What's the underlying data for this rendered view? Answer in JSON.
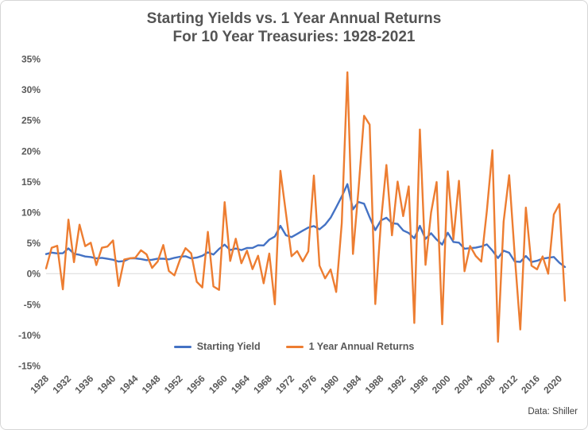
{
  "title": {
    "line1": "Starting Yields vs. 1 Year Annual Returns",
    "line2": "For 10 Year Treasuries: 1928-2021"
  },
  "source": "Data: Shiller",
  "legend": {
    "items": [
      {
        "label": "Starting Yield",
        "color": "#4472C4"
      },
      {
        "label": "1 Year Annual Returns",
        "color": "#ED7D31"
      }
    ]
  },
  "chart_data": {
    "type": "line",
    "title": "Starting Yields vs. 1 Year Annual Returns For 10 Year Treasuries: 1928-2021",
    "xlabel": "",
    "ylabel": "",
    "ylim": [
      -15,
      35
    ],
    "grid": "zero-line-only",
    "legend_position": "bottom-center",
    "x": [
      1928,
      1929,
      1930,
      1931,
      1932,
      1933,
      1934,
      1935,
      1936,
      1937,
      1938,
      1939,
      1940,
      1941,
      1942,
      1943,
      1944,
      1945,
      1946,
      1947,
      1948,
      1949,
      1950,
      1951,
      1952,
      1953,
      1954,
      1955,
      1956,
      1957,
      1958,
      1959,
      1960,
      1961,
      1962,
      1963,
      1964,
      1965,
      1966,
      1967,
      1968,
      1969,
      1970,
      1971,
      1972,
      1973,
      1974,
      1975,
      1976,
      1977,
      1978,
      1979,
      1980,
      1981,
      1982,
      1983,
      1984,
      1985,
      1986,
      1987,
      1988,
      1989,
      1990,
      1991,
      1992,
      1993,
      1994,
      1995,
      1996,
      1997,
      1998,
      1999,
      2000,
      2001,
      2002,
      2003,
      2004,
      2005,
      2006,
      2007,
      2008,
      2009,
      2010,
      2011,
      2012,
      2013,
      2014,
      2015,
      2016,
      2017,
      2018,
      2019,
      2020,
      2021
    ],
    "x_tick_interval": 4,
    "x_tick_labels": [
      "1928",
      "1932",
      "1936",
      "1940",
      "1944",
      "1948",
      "1952",
      "1956",
      "1960",
      "1964",
      "1968",
      "1972",
      "1976",
      "1980",
      "1984",
      "1988",
      "1992",
      "1996",
      "2000",
      "2004",
      "2008",
      "2012",
      "2016",
      "2020"
    ],
    "y_ticks": [
      {
        "value": 35,
        "label": "35%"
      },
      {
        "value": 30,
        "label": "30%"
      },
      {
        "value": 25,
        "label": "25%"
      },
      {
        "value": 20,
        "label": "20%"
      },
      {
        "value": 15,
        "label": "15%"
      },
      {
        "value": 10,
        "label": "10%"
      },
      {
        "value": 5,
        "label": "5%"
      },
      {
        "value": 0,
        "label": "0%"
      },
      {
        "value": -5,
        "label": "-5%"
      },
      {
        "value": -10,
        "label": "-10%"
      },
      {
        "value": -15,
        "label": "-15%"
      }
    ],
    "series": [
      {
        "name": "Starting Yield",
        "color": "#4472C4",
        "values": [
          3.17,
          3.42,
          3.29,
          3.31,
          4.11,
          3.22,
          3.06,
          2.79,
          2.69,
          2.47,
          2.56,
          2.41,
          2.26,
          1.95,
          2.05,
          2.47,
          2.48,
          2.37,
          2.19,
          2.25,
          2.44,
          2.42,
          2.32,
          2.57,
          2.74,
          2.83,
          2.48,
          2.61,
          2.9,
          3.46,
          3.09,
          4.02,
          4.72,
          3.84,
          4.08,
          3.83,
          4.17,
          4.19,
          4.61,
          4.58,
          5.53,
          6.04,
          7.79,
          6.24,
          5.95,
          6.46,
          6.99,
          7.5,
          7.74,
          7.21,
          7.96,
          9.1,
          10.8,
          12.57,
          14.59,
          10.46,
          11.67,
          11.38,
          9.19,
          7.08,
          8.67,
          9.09,
          8.21,
          8.09,
          7.03,
          6.6,
          5.75,
          7.78,
          5.65,
          6.58,
          5.54,
          4.72,
          6.66,
          5.16,
          5.04,
          4.05,
          4.15,
          4.22,
          4.42,
          4.76,
          3.74,
          2.52,
          3.73,
          3.39,
          1.97,
          1.91,
          2.86,
          1.88,
          2.09,
          2.43,
          2.58,
          2.71,
          1.76,
          1.08
        ]
      },
      {
        "name": "1 Year Annual Returns",
        "color": "#ED7D31",
        "values": [
          0.84,
          4.2,
          4.54,
          -2.56,
          8.79,
          1.86,
          7.96,
          4.47,
          5.02,
          1.38,
          4.21,
          4.41,
          5.4,
          -2.02,
          2.29,
          2.49,
          2.58,
          3.8,
          3.13,
          0.92,
          1.95,
          4.66,
          0.43,
          -0.3,
          2.27,
          4.14,
          3.29,
          -1.34,
          -2.26,
          6.8,
          -2.1,
          -2.65,
          11.64,
          2.06,
          5.69,
          1.68,
          3.73,
          0.72,
          2.91,
          -1.58,
          3.27,
          -5.01,
          16.75,
          9.79,
          2.82,
          3.66,
          1.99,
          3.61,
          15.98,
          1.29,
          -0.78,
          0.67,
          -2.99,
          8.2,
          32.81,
          3.2,
          13.73,
          25.71,
          24.28,
          -4.96,
          8.22,
          17.69,
          6.24,
          15.0,
          9.36,
          14.21,
          -8.04,
          23.48,
          1.43,
          9.94,
          14.92,
          -8.25,
          16.66,
          5.57,
          15.12,
          0.38,
          4.49,
          2.87,
          1.96,
          10.21,
          20.1,
          -11.12,
          8.46,
          16.04,
          2.97,
          -9.1,
          10.75,
          1.28,
          0.69,
          2.8,
          -0.02,
          9.64,
          11.33,
          -4.42
        ]
      }
    ]
  }
}
